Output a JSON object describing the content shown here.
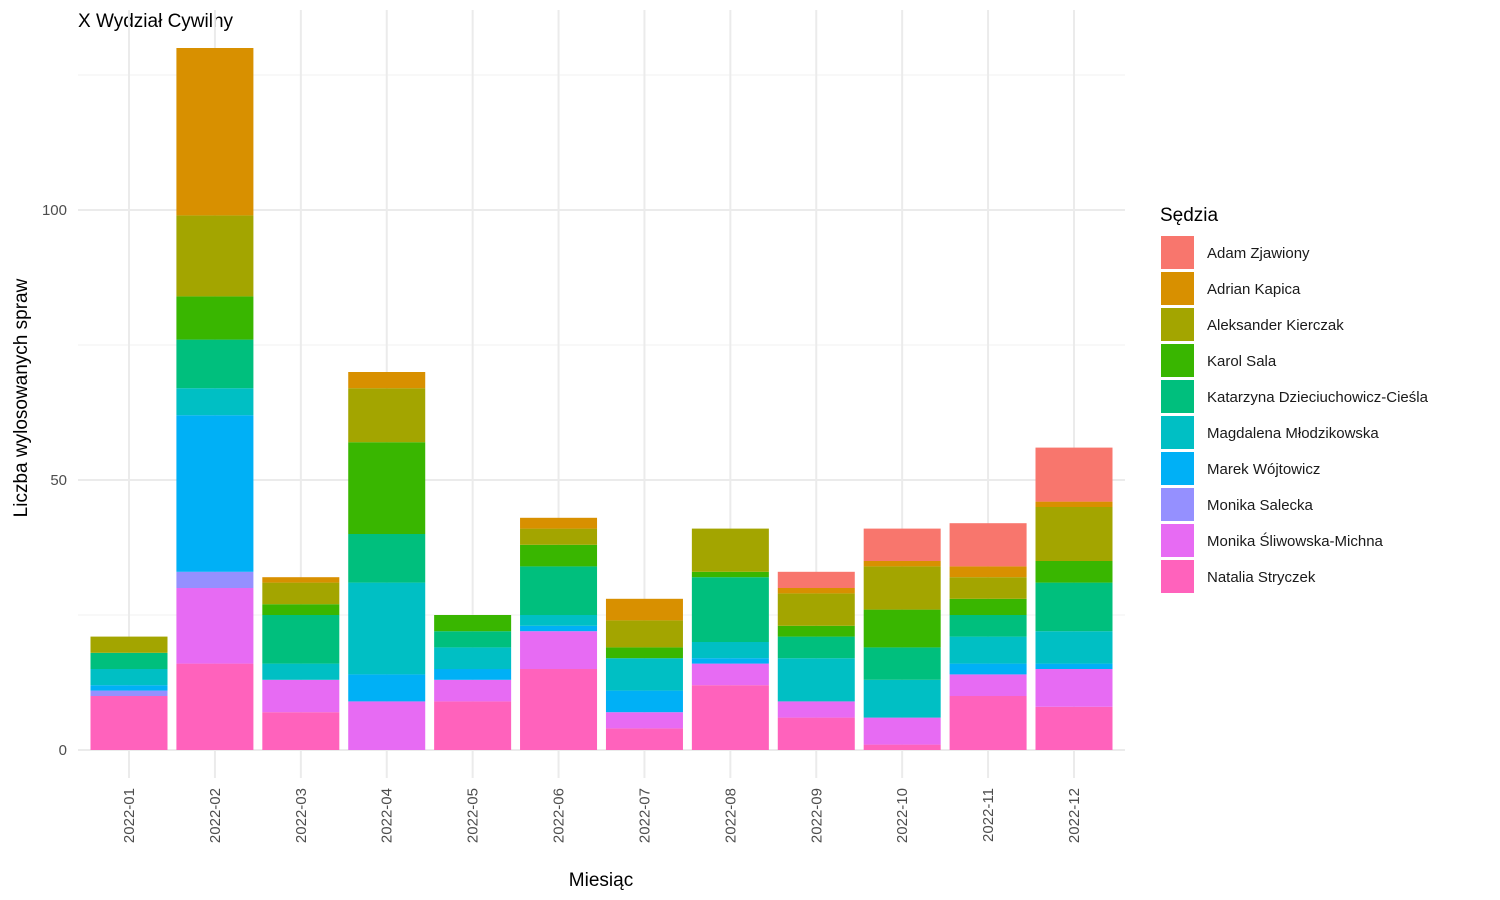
{
  "chart_data": {
    "type": "bar",
    "stacked": true,
    "title": "X Wydział Cywilny",
    "xlabel": "Miesiąc",
    "ylabel": "Liczba wylosowanych spraw",
    "ylim": [
      0,
      131
    ],
    "yticks": [
      0,
      50,
      100
    ],
    "grid": true,
    "legend_position": "right",
    "legend_title": "Sędzia",
    "categories": [
      "2022-01",
      "2022-02",
      "2022-03",
      "2022-04",
      "2022-05",
      "2022-06",
      "2022-07",
      "2022-08",
      "2022-09",
      "2022-10",
      "2022-11",
      "2022-12"
    ],
    "series": [
      {
        "name": "Adam Zjawiony",
        "color": "#F8766D",
        "values": [
          0,
          0,
          0,
          0,
          0,
          0,
          0,
          0,
          3,
          6,
          8,
          10
        ]
      },
      {
        "name": "Adrian Kapica",
        "color": "#D89000",
        "values": [
          0,
          31,
          1,
          3,
          0,
          2,
          4,
          0,
          1,
          1,
          2,
          1
        ]
      },
      {
        "name": "Aleksander Kierczak",
        "color": "#A3A500",
        "values": [
          3,
          15,
          4,
          10,
          0,
          3,
          5,
          8,
          6,
          8,
          4,
          10
        ]
      },
      {
        "name": "Karol Sala",
        "color": "#39B600",
        "values": [
          0,
          8,
          2,
          17,
          3,
          4,
          2,
          1,
          2,
          7,
          3,
          4
        ]
      },
      {
        "name": "Katarzyna Dzieciuchowicz-Cieśla",
        "color": "#00BF7D",
        "values": [
          3,
          9,
          9,
          9,
          3,
          9,
          0,
          12,
          4,
          6,
          4,
          9
        ]
      },
      {
        "name": "Magdalena Młodzikowska",
        "color": "#00BFC4",
        "values": [
          3,
          5,
          3,
          17,
          4,
          2,
          6,
          3,
          8,
          7,
          5,
          6
        ]
      },
      {
        "name": "Marek Wójtowicz",
        "color": "#00B0F6",
        "values": [
          1,
          29,
          0,
          5,
          2,
          1,
          4,
          1,
          0,
          0,
          2,
          1
        ]
      },
      {
        "name": "Monika Salecka",
        "color": "#9590FF",
        "values": [
          1,
          3,
          0,
          0,
          0,
          0,
          0,
          0,
          0,
          0,
          0,
          0
        ]
      },
      {
        "name": "Monika Śliwowska-Michna",
        "color": "#E76BF3",
        "values": [
          0,
          14,
          6,
          9,
          4,
          7,
          3,
          4,
          3,
          5,
          4,
          7
        ]
      },
      {
        "name": "Natalia Stryczek",
        "color": "#FF62BC",
        "values": [
          10,
          16,
          7,
          0,
          9,
          15,
          4,
          12,
          6,
          1,
          10,
          8
        ]
      }
    ]
  }
}
